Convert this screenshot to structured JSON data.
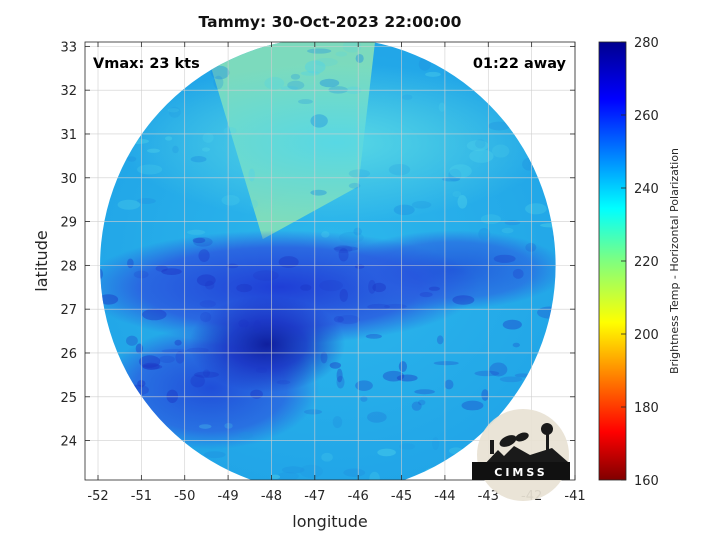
{
  "title": "Tammy: 30-Oct-2023 22:00:00",
  "annotations": {
    "vmax": "Vmax: 23 kts",
    "time_away": "01:22 away"
  },
  "logo_text": "CIMSS",
  "chart_data": {
    "type": "heatmap",
    "title": "Tammy: 30-Oct-2023 22:00:00",
    "xlabel": "longitude",
    "ylabel": "latitude",
    "xlim": [
      -52.3,
      -41
    ],
    "ylim": [
      23.1,
      33.1
    ],
    "xticks": [
      -52,
      -51,
      -50,
      -49,
      -48,
      -47,
      -46,
      -45,
      -44,
      -43,
      -42,
      -41
    ],
    "yticks": [
      24,
      25,
      26,
      27,
      28,
      29,
      30,
      31,
      32,
      33
    ],
    "grid": true,
    "colorbar": {
      "label": "Brightness Temp - Horizontal Polarization",
      "range": [
        160,
        280
      ],
      "ticks": [
        160,
        180,
        200,
        220,
        240,
        260,
        280
      ],
      "colormap": "jet"
    },
    "storm_center": {
      "lon": -48.1,
      "lat": 26.2
    },
    "swath": {
      "center_lon": -46.7,
      "center_lat": 28.0,
      "radius_deg_lat": 5.2
    },
    "regions": [
      {
        "name": "cold band north of center",
        "lat_range": [
          27,
          28.5
        ],
        "approx_temp": 262
      },
      {
        "name": "eyewall core",
        "approx_lon": -48.3,
        "approx_lat": 26.2,
        "approx_temp": 272
      },
      {
        "name": "northern warm field",
        "lat_range": [
          29,
          32.5
        ],
        "approx_temp": 240
      },
      {
        "name": "northern west-edge swath",
        "lon_range": [
          -49.6,
          -46.5
        ],
        "approx_temp": 228
      }
    ]
  }
}
